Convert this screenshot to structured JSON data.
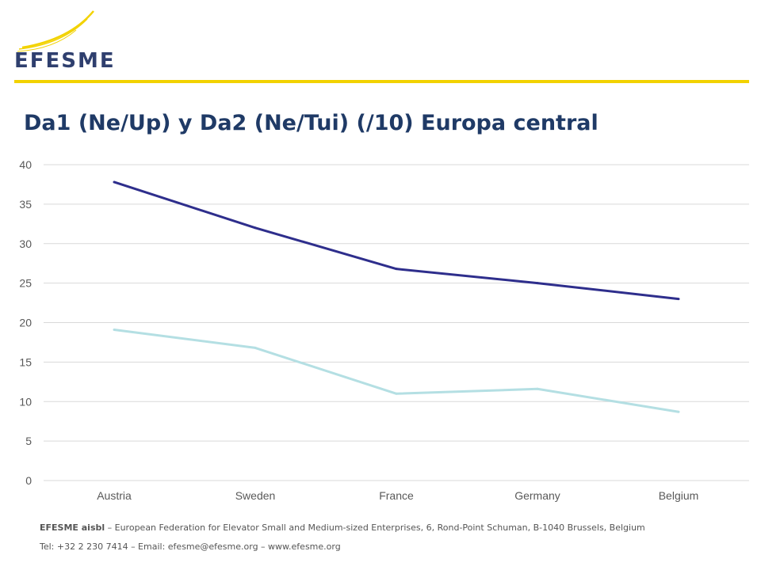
{
  "header": {
    "logo_text": "EFESME"
  },
  "colors": {
    "accent": "#f2d200",
    "title": "#1f3a66",
    "series1": "#2e2e8c",
    "series2": "#b4dfe3"
  },
  "chart_data": {
    "type": "line",
    "title": "Da1 (Ne/Up) y Da2 (Ne/Tui) (/10) Europa central",
    "categories": [
      "Austria",
      "Sweden",
      "France",
      "Germany",
      "Belgium"
    ],
    "series": [
      {
        "values": [
          37.8,
          32.0,
          26.8,
          25.0,
          23.0
        ],
        "color": "#2e2e8c"
      },
      {
        "values": [
          19.1,
          16.8,
          11.0,
          11.6,
          8.7
        ],
        "color": "#b4dfe3"
      }
    ],
    "ylim": [
      0,
      40
    ],
    "yticks": [
      "0",
      "5",
      "10",
      "15",
      "20",
      "25",
      "30",
      "35",
      "40"
    ],
    "grid": true,
    "xlabel": "",
    "ylabel": ""
  },
  "footer": {
    "org_name": "EFESME aisbl",
    "org_desc": " – European Federation for Elevator Small and Medium-sized Enterprises, 6, Rond-Point Schuman, B-1040 Brussels, Belgium",
    "contact": "Tel: +32 2 230 7414 – Email: efesme@efesme.org – www.efesme.org"
  }
}
